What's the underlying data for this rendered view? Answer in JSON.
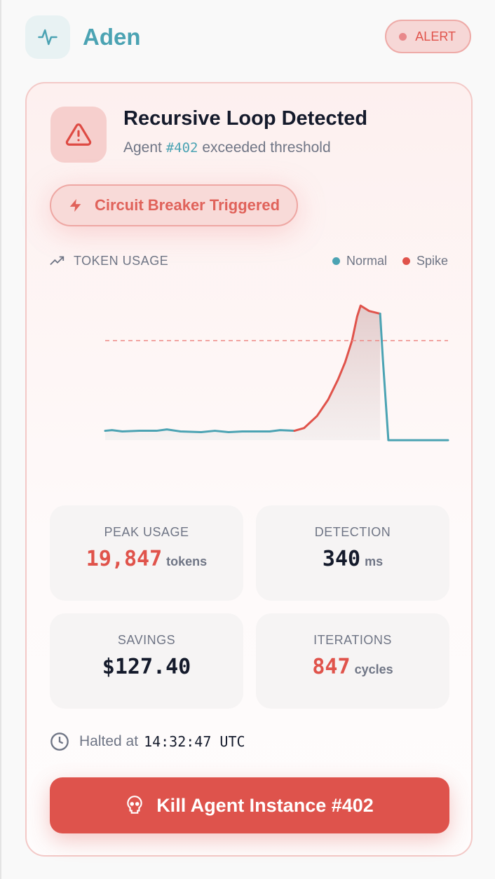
{
  "header": {
    "brand": "Aden",
    "status_badge": "ALERT",
    "logo_icon": "activity-icon"
  },
  "alert_card": {
    "title": "Recursive Loop Detected",
    "subtitle_prefix": "Agent",
    "agent_id": "#402",
    "subtitle_suffix": "exceeded threshold",
    "breaker_label": "Circuit Breaker Triggered"
  },
  "chart_data": {
    "type": "line",
    "title": "TOKEN USAGE",
    "legend": [
      {
        "name": "Normal",
        "color": "#4ba3b3"
      },
      {
        "name": "Spike",
        "color": "#e0534b"
      }
    ],
    "xlim": [
      0,
      100
    ],
    "ylim": [
      0,
      100
    ],
    "threshold": 74,
    "grid": false,
    "series": [
      {
        "name": "Normal",
        "points": [
          [
            0,
            7
          ],
          [
            2,
            7.5
          ],
          [
            5,
            6.5
          ],
          [
            10,
            7
          ],
          [
            15,
            7
          ],
          [
            18,
            8
          ],
          [
            22,
            6.5
          ],
          [
            28,
            6
          ],
          [
            32,
            7
          ],
          [
            36,
            6
          ],
          [
            40,
            6.5
          ],
          [
            44,
            6.5
          ],
          [
            48,
            6.5
          ],
          [
            51,
            7.5
          ],
          [
            55.2,
            7
          ]
        ]
      },
      {
        "name": "Spike",
        "points": [
          [
            55.2,
            7
          ],
          [
            58,
            9
          ],
          [
            61.8,
            18
          ],
          [
            65,
            30
          ],
          [
            67.9,
            45
          ],
          [
            70,
            58
          ],
          [
            72,
            74
          ],
          [
            73.5,
            92
          ],
          [
            74.5,
            100
          ],
          [
            77,
            96
          ],
          [
            80.2,
            94
          ]
        ]
      },
      {
        "name": "Normal",
        "points": [
          [
            80.2,
            94
          ],
          [
            81,
            60
          ],
          [
            82.6,
            0
          ],
          [
            100,
            0
          ]
        ]
      }
    ]
  },
  "stats": [
    {
      "label": "PEAK USAGE",
      "value": "19,847",
      "unit": "tokens",
      "color": "#e0534b"
    },
    {
      "label": "DETECTION",
      "value": "340",
      "unit": "ms",
      "color": "#141a2b"
    },
    {
      "label": "SAVINGS",
      "value": "$127.40",
      "unit": "",
      "color": "#141a2b"
    },
    {
      "label": "ITERATIONS",
      "value": "847",
      "unit": "cycles",
      "color": "#e0534b"
    }
  ],
  "halted": {
    "prefix": "Halted at",
    "time": "14:32:47 UTC"
  },
  "kill_button": "Kill Agent Instance #402"
}
